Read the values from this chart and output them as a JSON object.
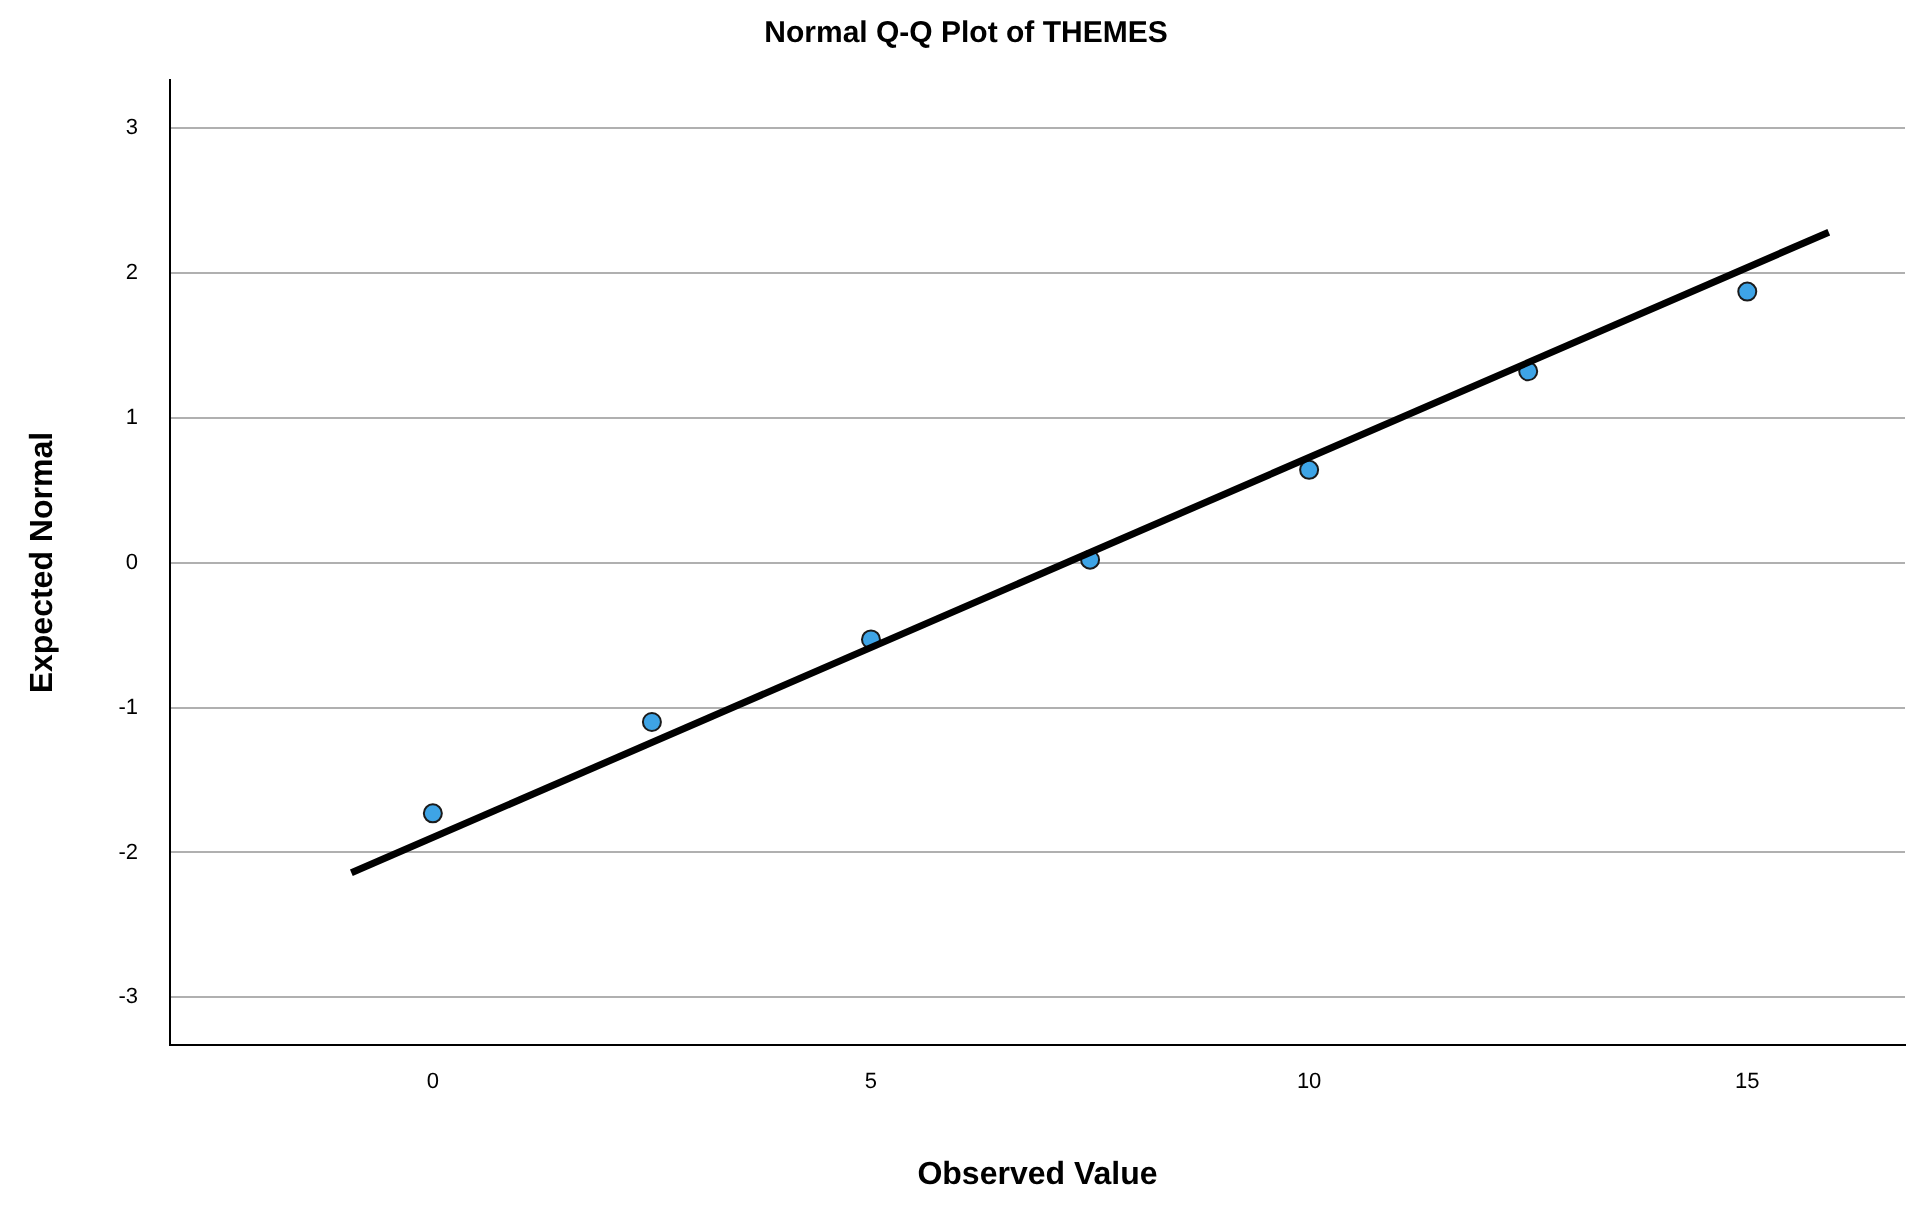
{
  "chart_data": {
    "type": "scatter",
    "title": "Normal Q-Q Plot of THEMES",
    "xlabel": "Observed Value",
    "ylabel": "Expected Normal",
    "x": [
      0,
      2.5,
      5,
      7.5,
      10,
      12.5,
      15
    ],
    "series": [
      {
        "color": "#3ea4e6",
        "marker": "circle",
        "values": [
          -1.73,
          -1.1,
          -0.53,
          0.02,
          0.64,
          1.32,
          1.87
        ]
      },
      {
        "type": "line",
        "color": "#000000",
        "x": [
          -0.93,
          15.93
        ],
        "values": [
          -2.14,
          2.28
        ]
      }
    ],
    "xlim": [
      -3,
      16.8
    ],
    "ylim": [
      -3.33,
      3.33
    ],
    "xticks": [
      0,
      5,
      10,
      15
    ],
    "yticks": [
      -3,
      -2,
      -1,
      0,
      1,
      2,
      3
    ],
    "grid": "y",
    "legend": false
  }
}
